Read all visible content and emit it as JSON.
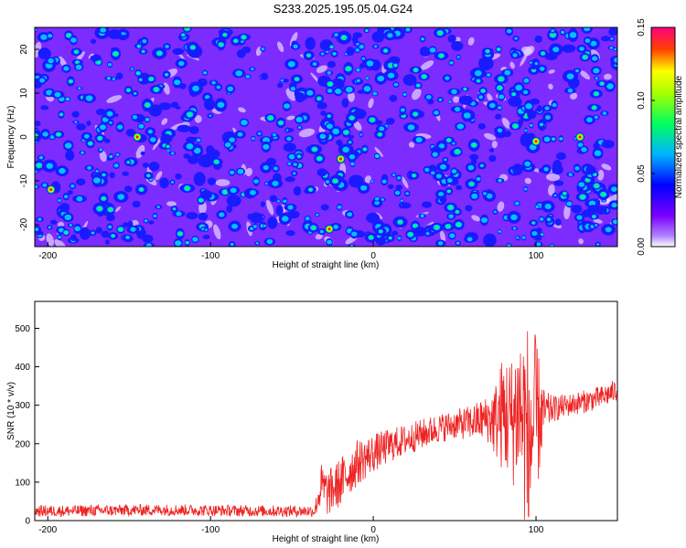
{
  "title": "S233.2025.195.05.04.G24",
  "chart_data": [
    {
      "type": "heatmap",
      "title": "S233.2025.195.05.04.G24",
      "xlabel": "Height of straight line (km)",
      "ylabel": "Frequency (Hz)",
      "xlim": [
        -208,
        150
      ],
      "ylim": [
        -25,
        25
      ],
      "x_ticks": [
        -200,
        -100,
        0,
        100
      ],
      "x_tick_labels": [
        "-200",
        "-100",
        "0",
        "100"
      ],
      "y_ticks": [
        20,
        10,
        0,
        -10,
        -20
      ],
      "y_tick_labels": [
        "20",
        "10",
        "0",
        "-10",
        "-20"
      ],
      "colorbar": {
        "label": "Normalized spectral amplitude",
        "range": [
          0,
          0.15
        ],
        "ticks": [
          0.0,
          0.05,
          0.1,
          0.15
        ],
        "tick_labels": [
          "0.00",
          "0.05",
          "0.10",
          "0.15"
        ]
      },
      "colormap": [
        "#ffffff",
        "#8a00ff",
        "#0000ff",
        "#00c8ff",
        "#00ff00",
        "#ffff00",
        "#ff0000",
        "#ff00a0"
      ],
      "description_values": {
        "background_amplitude": 0.02,
        "typical_blob_amplitude": 0.05,
        "peak_amplitudes": [
          {
            "x": -20,
            "y": -5,
            "value": 0.13
          },
          {
            "x": -27,
            "y": -21,
            "value": 0.13
          },
          {
            "x": 100,
            "y": -1,
            "value": 0.12
          },
          {
            "x": 127,
            "y": 0,
            "value": 0.11
          },
          {
            "x": -145,
            "y": 0,
            "value": 0.09
          },
          {
            "x": -198,
            "y": -12,
            "value": 0.1
          }
        ]
      }
    },
    {
      "type": "line",
      "xlabel": "Height of straight line (km)",
      "ylabel": "SNR (10 * v/v)",
      "xlim": [
        -208,
        150
      ],
      "ylim": [
        0,
        570
      ],
      "x_ticks": [
        -200,
        -100,
        0,
        100
      ],
      "x_tick_labels": [
        "-200",
        "-100",
        "0",
        "100"
      ],
      "y_ticks": [
        0,
        100,
        200,
        300,
        400,
        500
      ],
      "y_tick_labels": [
        "0",
        "100",
        "200",
        "300",
        "400",
        "500"
      ],
      "series": [
        {
          "color": "#ee2222",
          "x": [
            -208,
            -190,
            -170,
            -150,
            -130,
            -110,
            -90,
            -70,
            -50,
            -36,
            -32,
            -28,
            -20,
            -10,
            0,
            10,
            20,
            30,
            40,
            50,
            60,
            70,
            75,
            80,
            85,
            90,
            95,
            100,
            105,
            110,
            120,
            130,
            140,
            150
          ],
          "y": [
            25,
            25,
            26,
            27,
            28,
            27,
            26,
            25,
            25,
            25,
            90,
            70,
            100,
            150,
            175,
            195,
            210,
            225,
            240,
            250,
            255,
            265,
            260,
            280,
            260,
            300,
            200,
            260,
            280,
            290,
            300,
            310,
            320,
            340
          ],
          "noise": [
            15,
            15,
            15,
            15,
            15,
            15,
            15,
            15,
            15,
            15,
            60,
            60,
            65,
            60,
            50,
            45,
            40,
            40,
            38,
            38,
            45,
            60,
            100,
            160,
            170,
            220,
            320,
            220,
            60,
            35,
            30,
            30,
            30,
            30
          ]
        }
      ]
    }
  ]
}
